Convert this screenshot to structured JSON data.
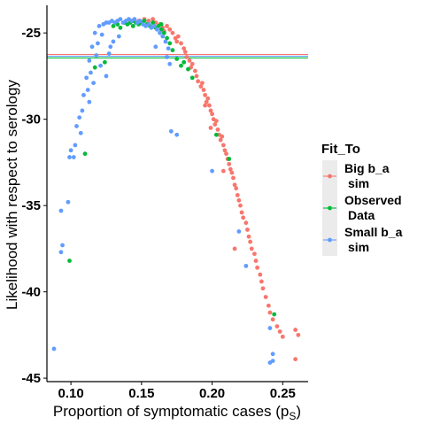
{
  "chart_data": {
    "type": "scatter",
    "xlabel": "Proportion of symptomatic cases (p",
    "xlabel_sub": "S",
    "xlabel_end": ")",
    "ylabel": "Likelihood with respect to serology",
    "xlim": [
      0.083,
      0.268
    ],
    "ylim": [
      -45.2,
      -23.4
    ],
    "x_ticks": [
      0.1,
      0.15,
      0.2,
      0.25
    ],
    "x_tick_labels": [
      "0.10",
      "0.15",
      "0.20",
      "0.25"
    ],
    "y_ticks": [
      -45,
      -40,
      -35,
      -30,
      -25
    ],
    "y_tick_labels": [
      "-45",
      "-40",
      "-35",
      "-30",
      "-25"
    ],
    "grid": false,
    "legend": {
      "title": "Fit_To",
      "placement": "right",
      "entries": [
        {
          "label_line1": "Big b_a",
          "label_line2": "sim",
          "color": "#F8766D"
        },
        {
          "label_line1": "Observed",
          "label_line2": "Data",
          "color": "#00BA38"
        },
        {
          "label_line1": "Small b_a",
          "label_line2": "sim",
          "color": "#619CFF"
        }
      ]
    },
    "hlines": [
      {
        "series": "Big b_a sim",
        "y": -26.25,
        "color": "#F8766D"
      },
      {
        "series": "Observed Data",
        "y": -26.45,
        "color": "#00BA38"
      },
      {
        "series": "Small b_a sim",
        "y": -26.35,
        "color": "#619CFF"
      }
    ],
    "series": [
      {
        "name": "Big b_a sim",
        "color": "#F8766D",
        "points": [
          [
            0.148,
            -24.3
          ],
          [
            0.152,
            -24.2
          ],
          [
            0.155,
            -24.3
          ],
          [
            0.158,
            -24.2
          ],
          [
            0.16,
            -24.4
          ],
          [
            0.163,
            -24.5
          ],
          [
            0.165,
            -24.7
          ],
          [
            0.166,
            -24.9
          ],
          [
            0.168,
            -24.6
          ],
          [
            0.17,
            -24.8
          ],
          [
            0.172,
            -25.0
          ],
          [
            0.174,
            -25.3
          ],
          [
            0.175,
            -25.5
          ],
          [
            0.176,
            -25.2
          ],
          [
            0.178,
            -25.6
          ],
          [
            0.18,
            -25.9
          ],
          [
            0.181,
            -26.1
          ],
          [
            0.182,
            -26.4
          ],
          [
            0.184,
            -26.6
          ],
          [
            0.185,
            -27.0
          ],
          [
            0.186,
            -26.8
          ],
          [
            0.188,
            -27.2
          ],
          [
            0.189,
            -27.5
          ],
          [
            0.19,
            -27.8
          ],
          [
            0.192,
            -28.1
          ],
          [
            0.193,
            -27.9
          ],
          [
            0.194,
            -28.3
          ],
          [
            0.195,
            -28.6
          ],
          [
            0.196,
            -29.0
          ],
          [
            0.197,
            -28.8
          ],
          [
            0.198,
            -29.2
          ],
          [
            0.199,
            -29.5
          ],
          [
            0.2,
            -29.7
          ],
          [
            0.201,
            -30.0
          ],
          [
            0.202,
            -30.3
          ],
          [
            0.203,
            -30.1
          ],
          [
            0.204,
            -30.6
          ],
          [
            0.205,
            -30.9
          ],
          [
            0.206,
            -31.2
          ],
          [
            0.207,
            -31.0
          ],
          [
            0.208,
            -31.5
          ],
          [
            0.209,
            -31.8
          ],
          [
            0.21,
            -32.0
          ],
          [
            0.211,
            -32.3
          ],
          [
            0.212,
            -32.6
          ],
          [
            0.213,
            -32.9
          ],
          [
            0.214,
            -33.1
          ],
          [
            0.215,
            -33.4
          ],
          [
            0.216,
            -33.8
          ],
          [
            0.217,
            -34.0
          ],
          [
            0.218,
            -34.4
          ],
          [
            0.219,
            -34.7
          ],
          [
            0.22,
            -35.0
          ],
          [
            0.221,
            -35.4
          ],
          [
            0.222,
            -35.7
          ],
          [
            0.224,
            -36.0
          ],
          [
            0.225,
            -36.4
          ],
          [
            0.226,
            -36.8
          ],
          [
            0.227,
            -37.1
          ],
          [
            0.228,
            -37.5
          ],
          [
            0.23,
            -37.8
          ],
          [
            0.231,
            -38.2
          ],
          [
            0.232,
            -38.6
          ],
          [
            0.234,
            -39.0
          ],
          [
            0.235,
            -39.4
          ],
          [
            0.236,
            -39.8
          ],
          [
            0.238,
            -40.3
          ],
          [
            0.24,
            -40.8
          ],
          [
            0.241,
            -41.2
          ],
          [
            0.243,
            -41.6
          ],
          [
            0.246,
            -42.0
          ],
          [
            0.248,
            -42.3
          ],
          [
            0.25,
            -42.6
          ],
          [
            0.259,
            -42.2
          ],
          [
            0.261,
            -42.5
          ],
          [
            0.259,
            -43.9
          ],
          [
            0.216,
            -37.5
          ],
          [
            0.208,
            -33.0
          ],
          [
            0.199,
            -30.5
          ],
          [
            0.195,
            -29.2
          ]
        ]
      },
      {
        "name": "Observed Data",
        "color": "#00BA38",
        "points": [
          [
            0.13,
            -24.6
          ],
          [
            0.133,
            -24.5
          ],
          [
            0.135,
            -24.7
          ],
          [
            0.138,
            -24.4
          ],
          [
            0.14,
            -24.5
          ],
          [
            0.142,
            -24.4
          ],
          [
            0.144,
            -24.3
          ],
          [
            0.146,
            -24.4
          ],
          [
            0.148,
            -24.5
          ],
          [
            0.15,
            -24.4
          ],
          [
            0.152,
            -24.3
          ],
          [
            0.154,
            -24.5
          ],
          [
            0.156,
            -24.6
          ],
          [
            0.158,
            -24.4
          ],
          [
            0.16,
            -24.7
          ],
          [
            0.162,
            -24.6
          ],
          [
            0.164,
            -24.8
          ],
          [
            0.166,
            -25.0
          ],
          [
            0.168,
            -25.3
          ],
          [
            0.17,
            -25.6
          ],
          [
            0.172,
            -26.0
          ],
          [
            0.175,
            -26.5
          ],
          [
            0.178,
            -26.9
          ],
          [
            0.18,
            -26.7
          ],
          [
            0.183,
            -27.1
          ],
          [
            0.186,
            -27.6
          ],
          [
            0.124,
            -26.7
          ],
          [
            0.117,
            -27.0
          ],
          [
            0.11,
            -32.0
          ],
          [
            0.099,
            -38.2
          ],
          [
            0.164,
            -24.5
          ],
          [
            0.144,
            -24.6
          ],
          [
            0.244,
            -41.3
          ],
          [
            0.203,
            -30.9
          ],
          [
            0.212,
            -32.3
          ]
        ]
      },
      {
        "name": "Small b_a sim",
        "color": "#619CFF",
        "points": [
          [
            0.12,
            -24.6
          ],
          [
            0.123,
            -24.5
          ],
          [
            0.125,
            -24.4
          ],
          [
            0.127,
            -24.4
          ],
          [
            0.129,
            -24.3
          ],
          [
            0.131,
            -24.4
          ],
          [
            0.133,
            -24.3
          ],
          [
            0.135,
            -24.2
          ],
          [
            0.137,
            -24.4
          ],
          [
            0.139,
            -24.3
          ],
          [
            0.141,
            -24.2
          ],
          [
            0.143,
            -24.3
          ],
          [
            0.145,
            -24.2
          ],
          [
            0.147,
            -24.4
          ],
          [
            0.149,
            -24.3
          ],
          [
            0.151,
            -24.5
          ],
          [
            0.153,
            -24.6
          ],
          [
            0.155,
            -24.5
          ],
          [
            0.157,
            -24.7
          ],
          [
            0.159,
            -24.6
          ],
          [
            0.161,
            -24.8
          ],
          [
            0.163,
            -25.0
          ],
          [
            0.165,
            -25.2
          ],
          [
            0.167,
            -25.5
          ],
          [
            0.169,
            -25.9
          ],
          [
            0.117,
            -25.0
          ],
          [
            0.119,
            -25.6
          ],
          [
            0.115,
            -25.8
          ],
          [
            0.118,
            -26.3
          ],
          [
            0.113,
            -26.6
          ],
          [
            0.114,
            -27.3
          ],
          [
            0.111,
            -27.6
          ],
          [
            0.116,
            -27.9
          ],
          [
            0.112,
            -28.3
          ],
          [
            0.109,
            -28.6
          ],
          [
            0.113,
            -29.0
          ],
          [
            0.108,
            -29.5
          ],
          [
            0.106,
            -29.9
          ],
          [
            0.104,
            -30.4
          ],
          [
            0.107,
            -30.8
          ],
          [
            0.103,
            -31.5
          ],
          [
            0.1,
            -31.8
          ],
          [
            0.099,
            -32.2
          ],
          [
            0.102,
            -32.2
          ],
          [
            0.098,
            -34.8
          ],
          [
            0.093,
            -35.3
          ],
          [
            0.094,
            -37.3
          ],
          [
            0.093,
            -37.7
          ],
          [
            0.088,
            -43.3
          ],
          [
            0.127,
            -26.2
          ],
          [
            0.121,
            -26.9
          ],
          [
            0.125,
            -27.5
          ],
          [
            0.17,
            -26.8
          ],
          [
            0.168,
            -26.4
          ],
          [
            0.171,
            -30.7
          ],
          [
            0.175,
            -30.9
          ],
          [
            0.2,
            -33.0
          ],
          [
            0.219,
            -36.5
          ],
          [
            0.224,
            -38.5
          ],
          [
            0.241,
            -42.1
          ],
          [
            0.243,
            -43.6
          ],
          [
            0.241,
            -44.1
          ],
          [
            0.243,
            -44.0
          ],
          [
            0.16,
            -25.8
          ],
          [
            0.134,
            -25.2
          ],
          [
            0.13,
            -25.5
          ],
          [
            0.128,
            -25.8
          ],
          [
            0.122,
            -25.1
          ]
        ]
      }
    ]
  }
}
